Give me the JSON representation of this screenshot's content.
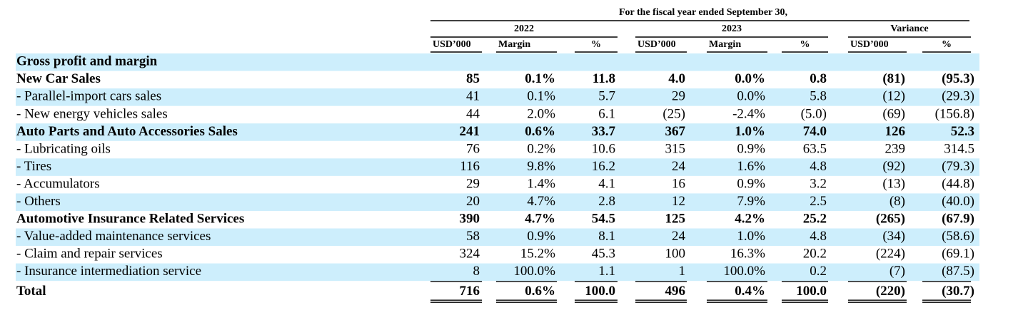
{
  "header": {
    "title": "For the fiscal year ended September 30,",
    "groups": [
      "2022",
      "2023",
      "Variance"
    ],
    "columns": [
      "USD’000",
      "Margin",
      "%",
      "USD’000",
      "Margin",
      "%",
      "USD’000",
      "%"
    ]
  },
  "table": {
    "rows": [
      {
        "label": "Gross profit and margin",
        "style": "bold"
      },
      {
        "label": "New Car Sales",
        "style": "bold",
        "values": [
          "85",
          "0.1%",
          "11.8",
          "4.0",
          "0.0%",
          "0.8",
          "(81)",
          "(95.3)"
        ]
      },
      {
        "label": "- Parallel-import cars sales",
        "style": "normal",
        "values": [
          "41",
          "0.1%",
          "5.7",
          "29",
          "0.0%",
          "5.8",
          "(12)",
          "(29.3)"
        ]
      },
      {
        "label": "- New energy vehicles sales",
        "style": "normal",
        "values": [
          "44",
          "2.0%",
          "6.1",
          "(25)",
          "-2.4%",
          "(5.0)",
          "(69)",
          "(156.8)"
        ]
      },
      {
        "label": "Auto Parts and Auto Accessories Sales",
        "style": "bold",
        "values": [
          "241",
          "0.6%",
          "33.7",
          "367",
          "1.0%",
          "74.0",
          "126",
          "52.3"
        ]
      },
      {
        "label": "- Lubricating oils",
        "style": "normal",
        "values": [
          "76",
          "0.2%",
          "10.6",
          "315",
          "0.9%",
          "63.5",
          "239",
          "314.5"
        ]
      },
      {
        "label": "- Tires",
        "style": "normal",
        "values": [
          "116",
          "9.8%",
          "16.2",
          "24",
          "1.6%",
          "4.8",
          "(92)",
          "(79.3)"
        ]
      },
      {
        "label": "- Accumulators",
        "style": "normal",
        "values": [
          "29",
          "1.4%",
          "4.1",
          "16",
          "0.9%",
          "3.2",
          "(13)",
          "(44.8)"
        ]
      },
      {
        "label": "- Others",
        "style": "normal",
        "values": [
          "20",
          "4.7%",
          "2.8",
          "12",
          "7.9%",
          "2.5",
          "(8)",
          "(40.0)"
        ]
      },
      {
        "label": "Automotive Insurance Related Services",
        "style": "bold",
        "values": [
          "390",
          "4.7%",
          "54.5",
          "125",
          "4.2%",
          "25.2",
          "(265)",
          "(67.9)"
        ]
      },
      {
        "label": "- Value-added maintenance services",
        "style": "normal",
        "values": [
          "58",
          "0.9%",
          "8.1",
          "24",
          "1.0%",
          "4.8",
          "(34)",
          "(58.6)"
        ]
      },
      {
        "label": "- Claim and repair services",
        "style": "normal",
        "values": [
          "324",
          "15.2%",
          "45.3",
          "100",
          "16.3%",
          "20.2",
          "(224)",
          "(69.1)"
        ]
      },
      {
        "label": "- Insurance intermediation service",
        "style": "normal",
        "values": [
          "8",
          "100.0%",
          "1.1",
          "1",
          "100.0%",
          "0.2",
          "(7)",
          "(87.5)"
        ]
      },
      {
        "label": "Total",
        "style": "bold",
        "values": [
          "716",
          "0.6%",
          "100.0",
          "496",
          "0.4%",
          "100.0",
          "(220)",
          "(30.7)"
        ]
      }
    ]
  }
}
